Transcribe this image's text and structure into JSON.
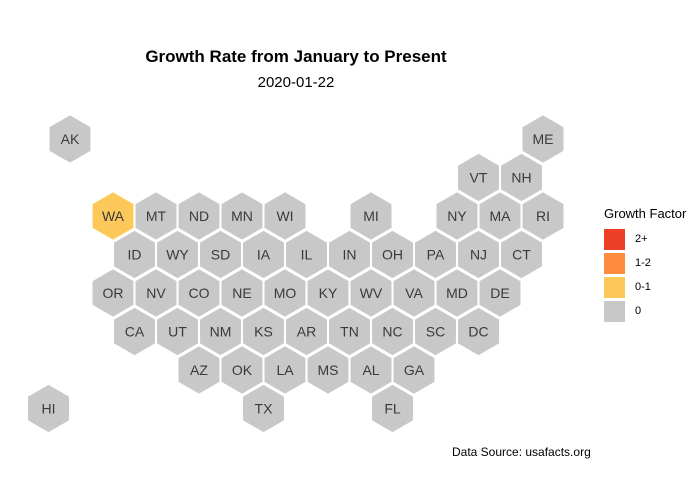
{
  "title": "Growth Rate from January to Present",
  "subtitle": "2020-01-22",
  "source": "Data Source: usafacts.org",
  "colors": {
    "hex_default": "#c8c8c8",
    "hex_stroke": "#ffffff",
    "label": "#3a3a3a",
    "cat_0_1": "#fdc85a",
    "cat_1_2": "#fd8d3c",
    "cat_2plus": "#ee3f27",
    "cat_0": "#c8c8c8"
  },
  "legend": {
    "title": "Growth Factor",
    "items": [
      {
        "label": "2+",
        "color": "#ee3f27"
      },
      {
        "label": "1-2",
        "color": "#fd8d3c"
      },
      {
        "label": "0-1",
        "color": "#fdc85a"
      },
      {
        "label": "0",
        "color": "#c8c8c8"
      }
    ]
  },
  "chart_data": {
    "type": "hexbin-map",
    "date": "2020-01-22",
    "states": [
      {
        "abbr": "AK",
        "col": 0,
        "row": 0,
        "category": "0"
      },
      {
        "abbr": "ME",
        "col": 11,
        "row": 0,
        "category": "0"
      },
      {
        "abbr": "VT",
        "col": 9.5,
        "row": 1,
        "category": "0"
      },
      {
        "abbr": "NH",
        "col": 10.5,
        "row": 1,
        "category": "0"
      },
      {
        "abbr": "WA",
        "col": 1,
        "row": 2,
        "category": "0-1"
      },
      {
        "abbr": "MT",
        "col": 2,
        "row": 2,
        "category": "0"
      },
      {
        "abbr": "ND",
        "col": 3,
        "row": 2,
        "category": "0"
      },
      {
        "abbr": "MN",
        "col": 4,
        "row": 2,
        "category": "0"
      },
      {
        "abbr": "WI",
        "col": 5,
        "row": 2,
        "category": "0"
      },
      {
        "abbr": "MI",
        "col": 7,
        "row": 2,
        "category": "0"
      },
      {
        "abbr": "NY",
        "col": 9,
        "row": 2,
        "category": "0"
      },
      {
        "abbr": "MA",
        "col": 10,
        "row": 2,
        "category": "0"
      },
      {
        "abbr": "RI",
        "col": 11,
        "row": 2,
        "category": "0"
      },
      {
        "abbr": "ID",
        "col": 1.5,
        "row": 3,
        "category": "0"
      },
      {
        "abbr": "WY",
        "col": 2.5,
        "row": 3,
        "category": "0"
      },
      {
        "abbr": "SD",
        "col": 3.5,
        "row": 3,
        "category": "0"
      },
      {
        "abbr": "IA",
        "col": 4.5,
        "row": 3,
        "category": "0"
      },
      {
        "abbr": "IL",
        "col": 5.5,
        "row": 3,
        "category": "0"
      },
      {
        "abbr": "IN",
        "col": 6.5,
        "row": 3,
        "category": "0"
      },
      {
        "abbr": "OH",
        "col": 7.5,
        "row": 3,
        "category": "0"
      },
      {
        "abbr": "PA",
        "col": 8.5,
        "row": 3,
        "category": "0"
      },
      {
        "abbr": "NJ",
        "col": 9.5,
        "row": 3,
        "category": "0"
      },
      {
        "abbr": "CT",
        "col": 10.5,
        "row": 3,
        "category": "0"
      },
      {
        "abbr": "OR",
        "col": 1,
        "row": 4,
        "category": "0"
      },
      {
        "abbr": "NV",
        "col": 2,
        "row": 4,
        "category": "0"
      },
      {
        "abbr": "CO",
        "col": 3,
        "row": 4,
        "category": "0"
      },
      {
        "abbr": "NE",
        "col": 4,
        "row": 4,
        "category": "0"
      },
      {
        "abbr": "MO",
        "col": 5,
        "row": 4,
        "category": "0"
      },
      {
        "abbr": "KY",
        "col": 6,
        "row": 4,
        "category": "0"
      },
      {
        "abbr": "WV",
        "col": 7,
        "row": 4,
        "category": "0"
      },
      {
        "abbr": "VA",
        "col": 8,
        "row": 4,
        "category": "0"
      },
      {
        "abbr": "MD",
        "col": 9,
        "row": 4,
        "category": "0"
      },
      {
        "abbr": "DE",
        "col": 10,
        "row": 4,
        "category": "0"
      },
      {
        "abbr": "CA",
        "col": 1.5,
        "row": 5,
        "category": "0"
      },
      {
        "abbr": "UT",
        "col": 2.5,
        "row": 5,
        "category": "0"
      },
      {
        "abbr": "NM",
        "col": 3.5,
        "row": 5,
        "category": "0"
      },
      {
        "abbr": "KS",
        "col": 4.5,
        "row": 5,
        "category": "0"
      },
      {
        "abbr": "AR",
        "col": 5.5,
        "row": 5,
        "category": "0"
      },
      {
        "abbr": "TN",
        "col": 6.5,
        "row": 5,
        "category": "0"
      },
      {
        "abbr": "NC",
        "col": 7.5,
        "row": 5,
        "category": "0"
      },
      {
        "abbr": "SC",
        "col": 8.5,
        "row": 5,
        "category": "0"
      },
      {
        "abbr": "DC",
        "col": 9.5,
        "row": 5,
        "category": "0"
      },
      {
        "abbr": "AZ",
        "col": 3,
        "row": 6,
        "category": "0"
      },
      {
        "abbr": "OK",
        "col": 4,
        "row": 6,
        "category": "0"
      },
      {
        "abbr": "LA",
        "col": 5,
        "row": 6,
        "category": "0"
      },
      {
        "abbr": "MS",
        "col": 6,
        "row": 6,
        "category": "0"
      },
      {
        "abbr": "AL",
        "col": 7,
        "row": 6,
        "category": "0"
      },
      {
        "abbr": "GA",
        "col": 8,
        "row": 6,
        "category": "0"
      },
      {
        "abbr": "HI",
        "col": -0.5,
        "row": 7,
        "category": "0"
      },
      {
        "abbr": "TX",
        "col": 4.5,
        "row": 7,
        "category": "0"
      },
      {
        "abbr": "FL",
        "col": 7.5,
        "row": 7,
        "category": "0"
      }
    ]
  }
}
